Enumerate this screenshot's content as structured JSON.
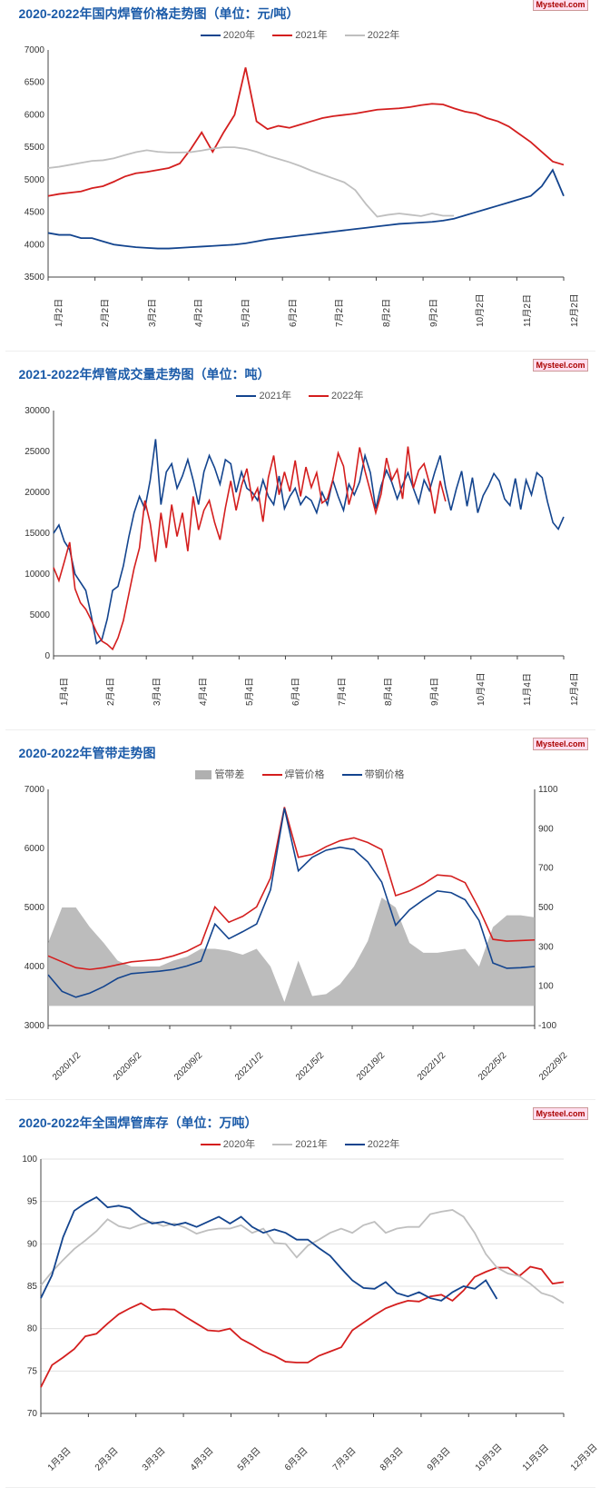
{
  "watermark": "Mysteel.com",
  "colors": {
    "blue": "#13448e",
    "red": "#d41e1e",
    "gray": "#bfbfbf",
    "areaGray": "#b0b0b0",
    "grid": "#e0e0e0",
    "axis": "#444",
    "title": "#1a5aa8"
  },
  "chart1": {
    "title": "2020-2022年国内焊管价格走势图（单位：元/吨）",
    "type": "line",
    "ylim": [
      3500,
      7000
    ],
    "ytick_step": 500,
    "legend": [
      "2020年",
      "2021年",
      "2022年"
    ],
    "legendColors": [
      "#13448e",
      "#d41e1e",
      "#bfbfbf"
    ],
    "xLabels": [
      "1月2日",
      "2月2日",
      "3月2日",
      "4月2日",
      "5月2日",
      "6月2日",
      "7月2日",
      "8月2日",
      "9月2日",
      "10月2日",
      "11月2日",
      "12月2日"
    ],
    "series": {
      "2020": [
        4180,
        4150,
        4150,
        4100,
        4100,
        4050,
        4000,
        3980,
        3960,
        3950,
        3940,
        3940,
        3950,
        3960,
        3970,
        3980,
        3990,
        4000,
        4020,
        4050,
        4080,
        4100,
        4120,
        4140,
        4160,
        4180,
        4200,
        4220,
        4240,
        4260,
        4280,
        4300,
        4320,
        4330,
        4340,
        4350,
        4370,
        4400,
        4450,
        4500,
        4550,
        4600,
        4650,
        4700,
        4750,
        4900,
        5150,
        4750
      ],
      "2021": [
        4750,
        4780,
        4800,
        4820,
        4870,
        4900,
        4970,
        5050,
        5100,
        5120,
        5150,
        5180,
        5250,
        5470,
        5730,
        5430,
        5730,
        6000,
        6730,
        5900,
        5780,
        5830,
        5800,
        5850,
        5900,
        5950,
        5980,
        6000,
        6020,
        6050,
        6080,
        6090,
        6100,
        6120,
        6150,
        6170,
        6160,
        6100,
        6050,
        6020,
        5950,
        5900,
        5820,
        5700,
        5580,
        5430,
        5280,
        5230
      ],
      "2022": [
        5180,
        5200,
        5230,
        5260,
        5290,
        5300,
        5330,
        5380,
        5425,
        5455,
        5430,
        5420,
        5420,
        5425,
        5450,
        5480,
        5500,
        5500,
        5475,
        5430,
        5370,
        5320,
        5270,
        5210,
        5140,
        5080,
        5020,
        4960,
        4840,
        4620,
        4430,
        4460,
        4480,
        4460,
        4440,
        4480,
        4445,
        4445,
        4445,
        4445,
        4445,
        4445,
        4445,
        4445,
        4445,
        4445,
        4445,
        4445
      ]
    },
    "series2022Len": 38
  },
  "chart2": {
    "title": "2021-2022年焊管成交量走势图（单位：吨）",
    "type": "line",
    "ylim": [
      0,
      30000
    ],
    "ytick_step": 5000,
    "legend": [
      "2021年",
      "2022年"
    ],
    "legendColors": [
      "#13448e",
      "#d41e1e"
    ],
    "xLabels": [
      "1月4日",
      "2月4日",
      "3月4日",
      "4月4日",
      "5月4日",
      "6月4日",
      "7月4日",
      "8月4日",
      "9月4日",
      "10月4日",
      "11月4日",
      "12月4日"
    ],
    "series": {
      "2021": [
        15000,
        16000,
        14000,
        13000,
        10000,
        9000,
        8000,
        5000,
        1500,
        2000,
        4500,
        8000,
        8500,
        11000,
        14500,
        17500,
        19500,
        18000,
        21500,
        26500,
        18500,
        22500,
        23500,
        20500,
        22000,
        24000,
        21500,
        18500,
        22500,
        24500,
        23000,
        21000,
        24000,
        23500,
        20000,
        22500,
        20500,
        20000,
        19000,
        21500,
        19500,
        18500,
        22000,
        18000,
        19500,
        20500,
        18500,
        19500,
        19000,
        17500,
        20000,
        18500,
        21500,
        19500,
        17800,
        21000,
        19700,
        21300,
        24500,
        22400,
        18000,
        20800,
        22700,
        21200,
        19200,
        20900,
        22400,
        20500,
        18700,
        21500,
        20200,
        22500,
        24500,
        20600,
        17800,
        20400,
        22600,
        18300,
        21800,
        17500,
        19600,
        20800,
        22300,
        21400,
        19200,
        18400,
        21700,
        17900,
        21500,
        19700,
        22400,
        21800,
        18800,
        16300,
        15500,
        17000
      ],
      "2022": [
        10800,
        9200,
        11500,
        13900,
        8200,
        6500,
        5700,
        4400,
        2900,
        1800,
        1400,
        800,
        2200,
        4300,
        7500,
        10700,
        13200,
        19000,
        16200,
        11500,
        17500,
        13200,
        18500,
        14600,
        17500,
        12800,
        19500,
        15400,
        17800,
        19000,
        16300,
        14200,
        18100,
        21400,
        17800,
        20800,
        22900,
        19100,
        20500,
        16400,
        21800,
        24500,
        19700,
        22500,
        20100,
        23900,
        19500,
        23100,
        20600,
        22400,
        18700,
        19200,
        21500,
        24800,
        23200,
        18500,
        20900,
        25500,
        22600,
        20100,
        17500,
        19800,
        24200,
        21500,
        22800,
        19200,
        25600,
        20500,
        22700,
        23500,
        21100,
        17400,
        21400,
        18900,
        16900,
        15900,
        17400,
        18400,
        17700,
        18100,
        17900,
        18300,
        18020,
        18470,
        18150,
        18600,
        18290,
        18720,
        18440,
        18860,
        18590,
        19010,
        18740,
        19160,
        18900,
        18600
      ]
    },
    "series2022Len": 74
  },
  "chart3": {
    "title": "2020-2022年管带走势图",
    "type": "line+area",
    "ylimL": [
      3000,
      7000
    ],
    "ytickL_step": 1000,
    "ylimR": [
      -100,
      1100
    ],
    "ytickR_step": 200,
    "legend": [
      "管带差",
      "焊管价格",
      "带钢价格"
    ],
    "legendColors": [
      "#b0b0b0",
      "#d41e1e",
      "#13448e"
    ],
    "legendTypes": [
      "box",
      "line",
      "line"
    ],
    "xLabels": [
      "2020/1/2",
      "2020/5/2",
      "2020/9/2",
      "2021/1/2",
      "2021/5/2",
      "2021/9/2",
      "2022/1/2",
      "2022/5/2",
      "2022/9/2"
    ],
    "series": {
      "red": [
        4180,
        4080,
        3980,
        3950,
        3980,
        4030,
        4080,
        4100,
        4120,
        4180,
        4260,
        4380,
        5010,
        4750,
        4850,
        5010,
        5500,
        6700,
        5850,
        5900,
        6030,
        6130,
        6180,
        6100,
        5980,
        5200,
        5280,
        5400,
        5550,
        5530,
        5420,
        4980,
        4460,
        4430,
        4440,
        4450
      ],
      "blue": [
        3860,
        3580,
        3480,
        3550,
        3660,
        3800,
        3880,
        3900,
        3920,
        3950,
        4010,
        4090,
        4720,
        4470,
        4590,
        4720,
        5300,
        6680,
        5620,
        5850,
        5970,
        6020,
        5980,
        5770,
        5430,
        4700,
        4960,
        5130,
        5280,
        5250,
        5130,
        4780,
        4060,
        3970,
        3980,
        4000
      ],
      "area": [
        320,
        500,
        500,
        400,
        320,
        230,
        200,
        200,
        200,
        230,
        250,
        290,
        290,
        280,
        260,
        290,
        200,
        20,
        230,
        50,
        60,
        110,
        200,
        330,
        550,
        500,
        320,
        270,
        270,
        280,
        290,
        200,
        400,
        460,
        460,
        450
      ]
    }
  },
  "chart4": {
    "title": "2020-2022年全国焊管库存（单位：万吨）",
    "type": "line",
    "ylim": [
      70,
      100
    ],
    "ytick_step": 5,
    "legend": [
      "2020年",
      "2021年",
      "2022年"
    ],
    "legendColors": [
      "#d41e1e",
      "#bfbfbf",
      "#13448e"
    ],
    "xLabels": [
      "1月3日",
      "2月3日",
      "3月3日",
      "4月3日",
      "5月3日",
      "6月3日",
      "7月3日",
      "8月3日",
      "9月3日",
      "10月3日",
      "11月3日",
      "12月3日"
    ],
    "series": {
      "2020": [
        73.1,
        75.7,
        76.6,
        77.6,
        79.1,
        79.4,
        80.6,
        81.7,
        82.4,
        83.0,
        82.2,
        82.3,
        82.25,
        81.4,
        80.6,
        79.8,
        79.7,
        80.0,
        78.8,
        78.1,
        77.3,
        76.8,
        76.1,
        76.0,
        76.0,
        76.8,
        77.3,
        77.8,
        79.8,
        80.7,
        81.6,
        82.4,
        82.9,
        83.3,
        83.2,
        83.8,
        84.0,
        83.3,
        84.5,
        86.1,
        86.7,
        87.2,
        87.2,
        86.2,
        87.3,
        87.0,
        85.3,
        85.5
      ],
      "2021": [
        85.1,
        86.7,
        88.1,
        89.4,
        90.4,
        91.5,
        92.9,
        92.1,
        91.8,
        92.3,
        92.6,
        92.1,
        92.4,
        91.9,
        91.2,
        91.6,
        91.8,
        91.8,
        92.2,
        91.3,
        91.8,
        90.1,
        90.0,
        88.4,
        89.8,
        90.5,
        91.3,
        91.8,
        91.3,
        92.2,
        92.6,
        91.3,
        91.8,
        92.0,
        92.0,
        93.5,
        93.8,
        94.0,
        93.2,
        91.3,
        88.8,
        87.2,
        86.5,
        86.2,
        85.3,
        84.2,
        83.8,
        83.0
      ],
      "2022": [
        83.6,
        86.3,
        90.8,
        93.9,
        94.8,
        95.5,
        94.3,
        94.5,
        94.2,
        93.1,
        92.4,
        92.6,
        92.2,
        92.5,
        92.0,
        92.6,
        93.2,
        92.4,
        93.2,
        92.0,
        91.3,
        91.7,
        91.3,
        90.5,
        90.5,
        89.5,
        88.6,
        87.1,
        85.7,
        84.8,
        84.7,
        85.5,
        84.2,
        83.8,
        84.3,
        83.6,
        83.3,
        84.3,
        85.0,
        84.7,
        85.7,
        83.5,
        83.5,
        83.5,
        83.5,
        83.5,
        83.5,
        83.5
      ]
    },
    "series2022Len": 42
  }
}
